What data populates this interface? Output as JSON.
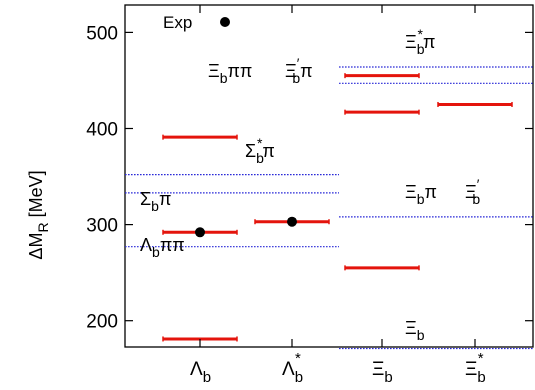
{
  "chart_data": {
    "type": "scatter",
    "ylabel": "ΔM_R [MeV]",
    "ylim": [
      150,
      520
    ],
    "yticks": [
      200,
      300,
      400,
      500
    ],
    "categories": [
      {
        "base": "Λ",
        "sub": "b",
        "sup": ""
      },
      {
        "base": "Λ",
        "sub": "b",
        "sup": "*"
      },
      {
        "base": "Ξ",
        "sub": "b",
        "sup": ""
      },
      {
        "base": "Ξ",
        "sub": "b",
        "sup": "*"
      }
    ],
    "colors": {
      "model": "#e4140c",
      "threshold": "#2a2ad8",
      "exp": "#000000"
    },
    "model_levels": [
      {
        "category": 0,
        "value": 181
      },
      {
        "category": 0,
        "value": 292
      },
      {
        "category": 0,
        "value": 391
      },
      {
        "category": 1,
        "value": 303
      },
      {
        "category": 2,
        "value": 255
      },
      {
        "category": 2,
        "value": 417
      },
      {
        "category": 2,
        "value": 455
      },
      {
        "category": 3,
        "value": 425
      }
    ],
    "experimental_points": [
      {
        "category": 0,
        "value": 292
      },
      {
        "category": 1,
        "value": 303
      }
    ],
    "thresholds": [
      {
        "group": "Lambda",
        "value": 277
      },
      {
        "group": "Lambda",
        "value": 333
      },
      {
        "group": "Lambda",
        "value": 352
      },
      {
        "group": "Xi",
        "value": 171
      },
      {
        "group": "Xi",
        "value": 308
      },
      {
        "group": "Xi",
        "value": 447
      },
      {
        "group": "Xi",
        "value": 464
      }
    ],
    "threshold_labels": [
      {
        "parts": [
          {
            "t": "Λ"
          },
          {
            "t": "b",
            "s": "sub"
          },
          {
            "t": "ππ"
          }
        ],
        "near": 277
      },
      {
        "parts": [
          {
            "t": "Σ"
          },
          {
            "t": "b",
            "s": "sub"
          },
          {
            "t": "π"
          }
        ],
        "near": 333
      },
      {
        "parts": [
          {
            "t": "Σ"
          },
          {
            "t": "b",
            "s": "sub"
          },
          {
            "t": "*",
            "s": "sup"
          },
          {
            "t": "π"
          }
        ],
        "near": 352
      },
      {
        "parts": [
          {
            "t": "Ξ"
          },
          {
            "t": "b",
            "s": "sub"
          }
        ],
        "near": 171
      },
      {
        "parts": [
          {
            "t": "Ξ"
          },
          {
            "t": "b",
            "s": "sub"
          },
          {
            "t": "π"
          }
        ],
        "near": 308
      },
      {
        "parts": [
          {
            "t": "Ξ"
          },
          {
            "t": "′",
            "s": "sup"
          },
          {
            "t": "b",
            "s": "sub"
          }
        ],
        "near": 308
      },
      {
        "parts": [
          {
            "t": "Ξ"
          },
          {
            "t": "b",
            "s": "sub"
          },
          {
            "t": "ππ"
          }
        ],
        "near": 447
      },
      {
        "parts": [
          {
            "t": "Ξ"
          },
          {
            "t": "′",
            "s": "sup"
          },
          {
            "t": "b",
            "s": "sub"
          },
          {
            "t": "π"
          }
        ],
        "near": 447
      },
      {
        "parts": [
          {
            "t": "Ξ"
          },
          {
            "t": "b",
            "s": "sub"
          },
          {
            "t": "*",
            "s": "sup"
          },
          {
            "t": "π"
          }
        ],
        "near": 464
      }
    ],
    "legend": {
      "label": "Exp",
      "position": "top-left"
    }
  }
}
